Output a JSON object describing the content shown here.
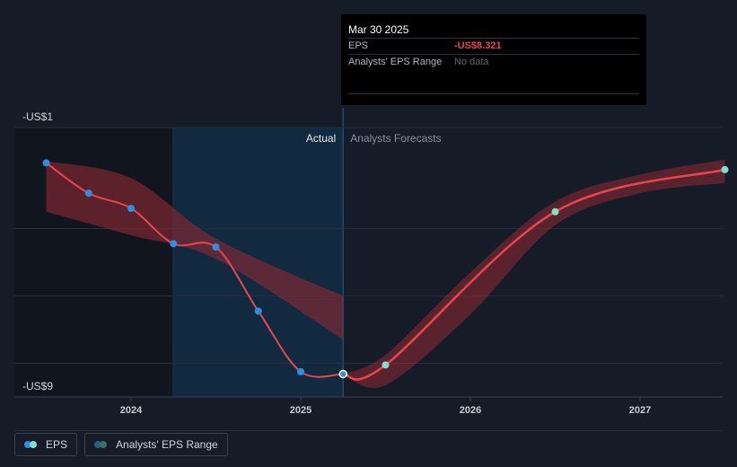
{
  "chart_data": {
    "type": "line",
    "y_top_label": "-US$1",
    "y_bottom_label": "-US$9",
    "ylim": [
      -9,
      -1
    ],
    "x_ticks": [
      "2024",
      "2025",
      "2026",
      "2027"
    ],
    "region_labels": {
      "actual": "Actual",
      "forecast": "Analysts Forecasts"
    },
    "series": [
      {
        "name": "EPS",
        "kind": "actual",
        "points": [
          {
            "x": 2023.5,
            "y": -2.05
          },
          {
            "x": 2023.75,
            "y": -2.95
          },
          {
            "x": 2024.0,
            "y": -3.4
          },
          {
            "x": 2024.25,
            "y": -4.45
          },
          {
            "x": 2024.5,
            "y": -4.55
          },
          {
            "x": 2024.75,
            "y": -6.45
          },
          {
            "x": 2025.0,
            "y": -8.25
          },
          {
            "x": 2025.25,
            "y": -8.32
          }
        ]
      },
      {
        "name": "EPS",
        "kind": "forecast",
        "points": [
          {
            "x": 2025.25,
            "y": -8.32
          },
          {
            "x": 2025.5,
            "y": -8.05
          },
          {
            "x": 2026.5,
            "y": -3.5
          },
          {
            "x": 2027.5,
            "y": -2.25
          }
        ]
      }
    ],
    "range_band_actual": {
      "x": [
        2023.5,
        2024.0,
        2024.5,
        2025.25
      ],
      "upper": [
        -2.0,
        -2.5,
        -4.3,
        -6.0
      ],
      "lower": [
        -3.5,
        -4.2,
        -4.9,
        -7.3
      ]
    },
    "range_band_forecast": {
      "x": [
        2025.25,
        2025.5,
        2026.0,
        2026.5,
        2027.0,
        2027.5
      ],
      "upper": [
        -8.32,
        -7.75,
        -5.3,
        -3.2,
        -2.4,
        -1.95
      ],
      "lower": [
        -8.32,
        -8.65,
        -6.55,
        -3.9,
        -2.95,
        -2.65
      ]
    },
    "colors": {
      "eps_line": "#e8454f",
      "actual_marker": "#2d8fe0",
      "forecast_marker": "#7fe0c8",
      "band": "#8f2a33"
    }
  },
  "tooltip": {
    "date": "Mar 30 2025",
    "eps_label": "EPS",
    "eps_value": "-US$8.321",
    "range_label": "Analysts' EPS Range",
    "range_value": "No data"
  },
  "legend": {
    "eps": "EPS",
    "range": "Analysts' EPS Range"
  }
}
